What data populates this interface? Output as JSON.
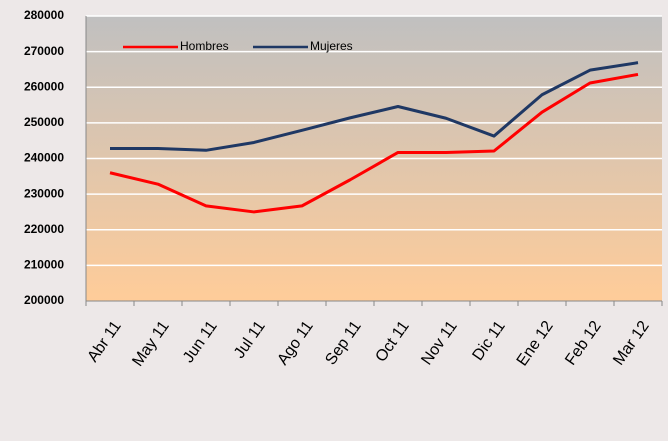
{
  "chart_data": {
    "type": "line",
    "categories": [
      "Abr 11",
      "May 11",
      "Jun 11",
      "Jul 11",
      "Ago 11",
      "Sep 11",
      "Oct 11",
      "Nov 11",
      "Dic 11",
      "Ene 12",
      "Feb 12",
      "Mar 12"
    ],
    "series": [
      {
        "name": "Hombres",
        "color": "#ff0000",
        "values": [
          236000,
          232800,
          226700,
          225000,
          226700,
          234000,
          241700,
          241700,
          242100,
          253000,
          261200,
          263600
        ]
      },
      {
        "name": "Mujeres",
        "color": "#1f3864",
        "values": [
          242800,
          242800,
          242300,
          244500,
          247900,
          251400,
          254600,
          251300,
          246300,
          257900,
          264800,
          266900
        ]
      }
    ],
    "ylim": [
      200000,
      280000
    ],
    "yticks": [
      200000,
      210000,
      220000,
      230000,
      240000,
      250000,
      260000,
      270000,
      280000
    ],
    "grid": true,
    "legend": "top-left"
  }
}
